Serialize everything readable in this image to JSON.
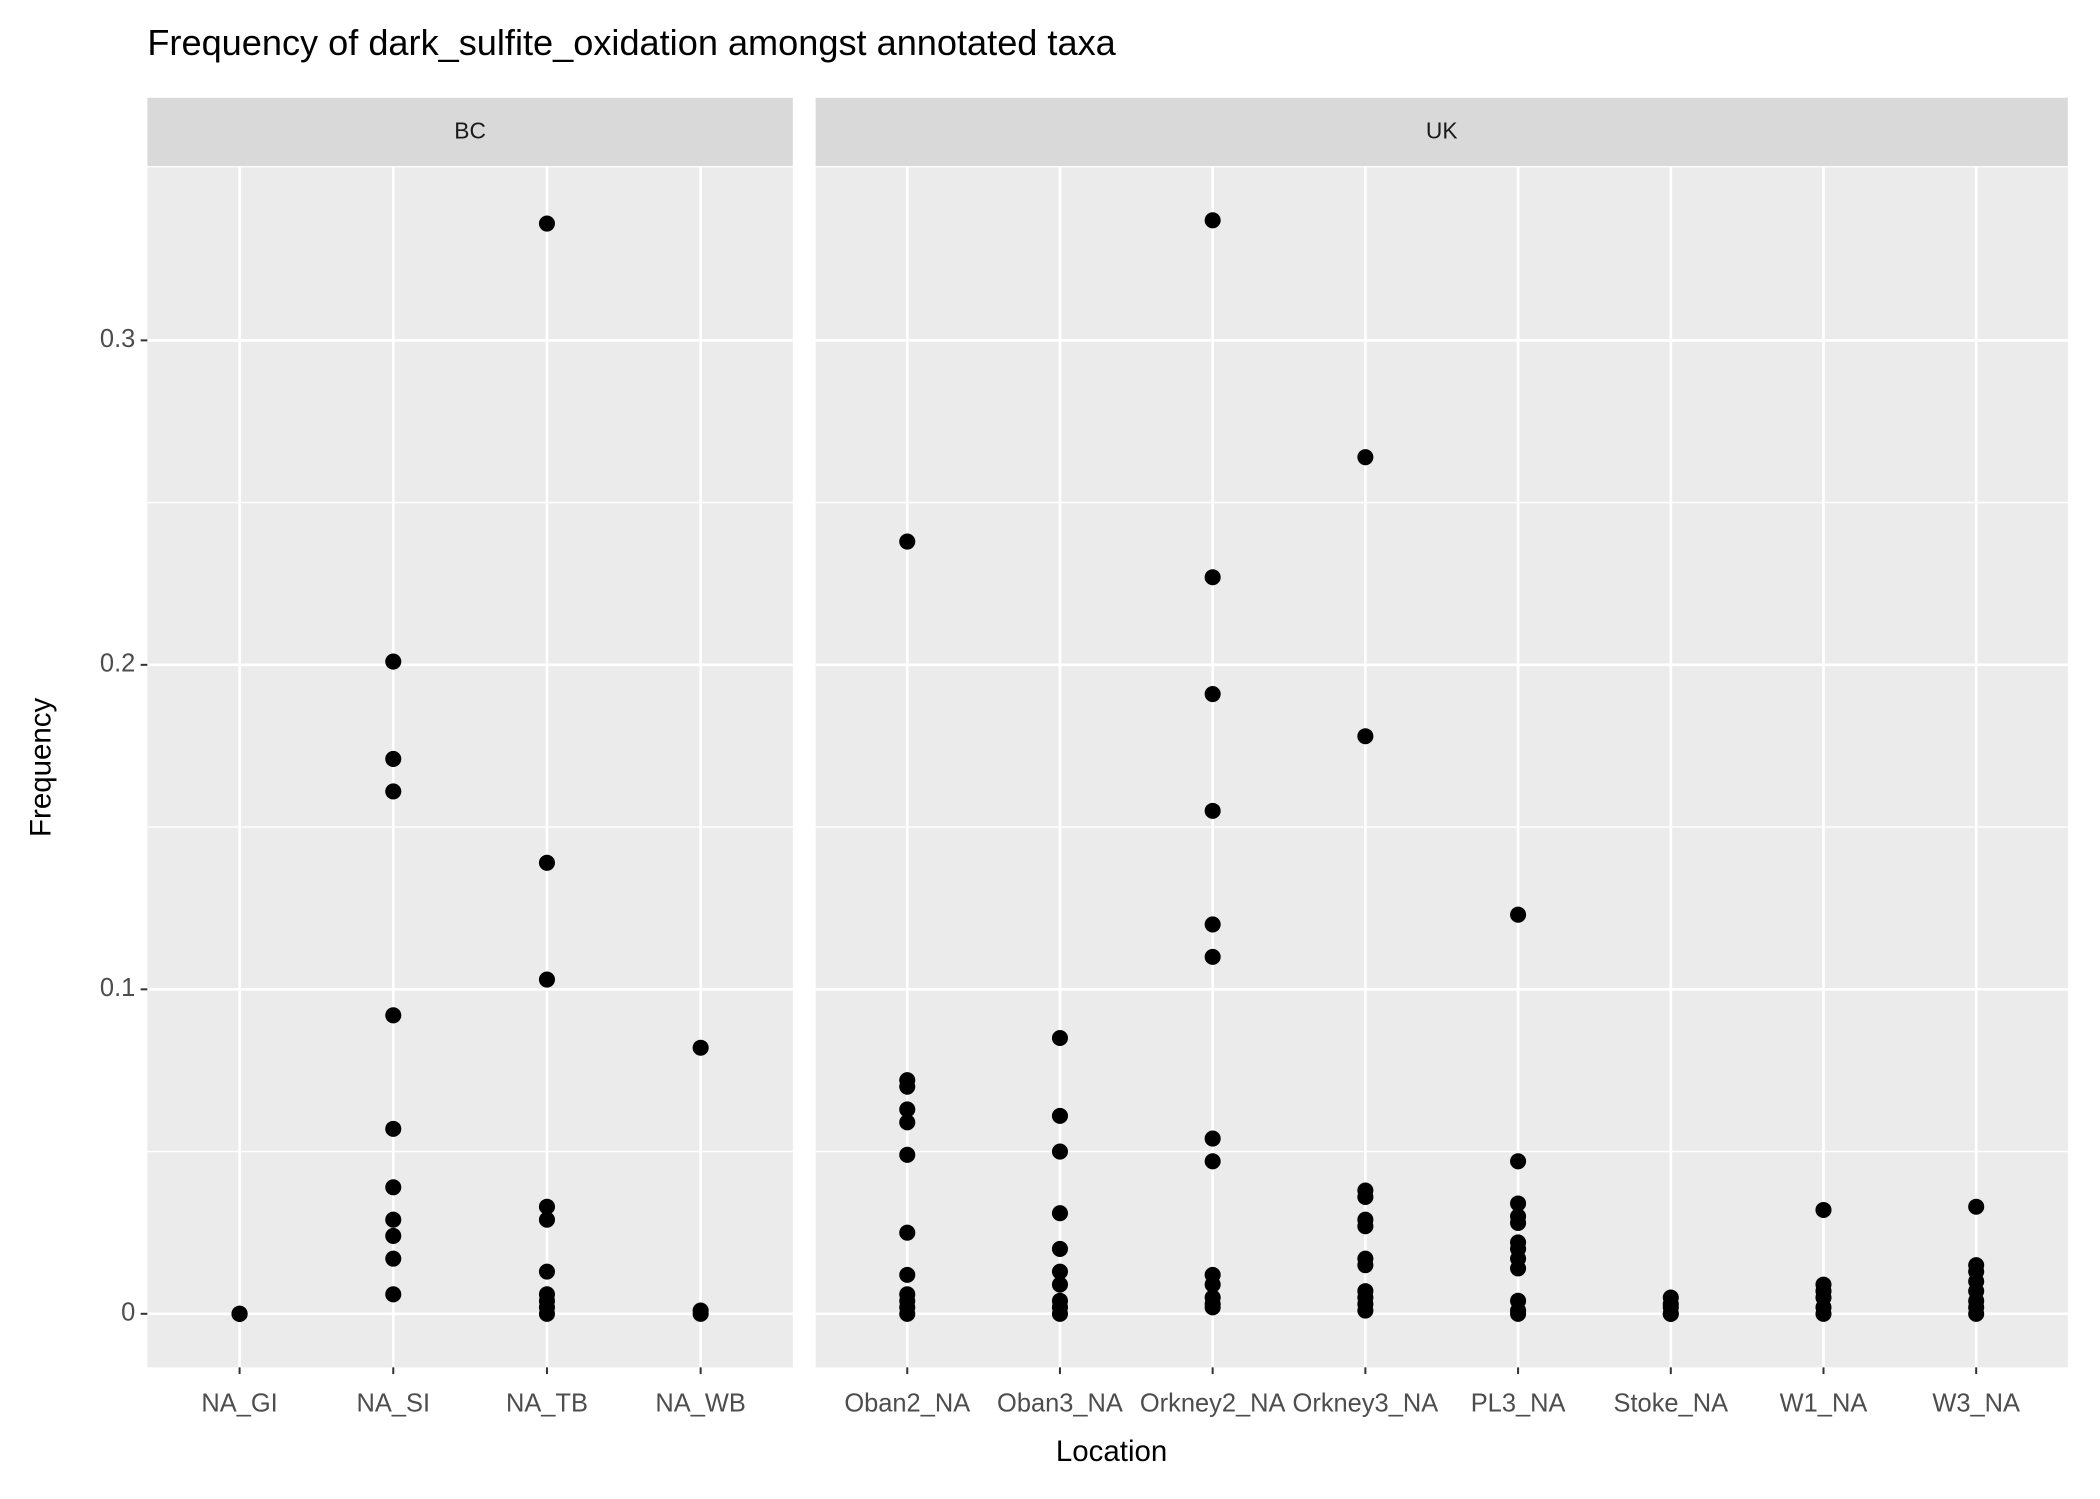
{
  "chart_data": {
    "type": "strip",
    "title": "Frequency of dark_sulfite_oxidation amongst annotated taxa",
    "x_label": "Location",
    "y_label": "Frequency",
    "ylim": [
      -0.0165,
      0.3533
    ],
    "yticks": [
      0.0,
      0.1,
      0.2,
      0.3
    ],
    "grid": true,
    "color": "#000000",
    "facets": [
      {
        "name": "BC",
        "categories": [
          "NA_GI",
          "NA_SI",
          "NA_TB",
          "NA_WB"
        ],
        "values": [
          [
            0,
            0,
            0
          ],
          [
            0.201,
            0.171,
            0.161,
            0.092,
            0.057,
            0.039,
            0.029,
            0.024,
            0.017,
            0.006
          ],
          [
            0.336,
            0.139,
            0.103,
            0.033,
            0.029,
            0.013,
            0.006,
            0.004,
            0.002,
            0
          ],
          [
            0.082,
            0.001,
            0
          ]
        ]
      },
      {
        "name": "UK",
        "categories": [
          "Oban2_NA",
          "Oban3_NA",
          "Orkney2_NA",
          "Orkney3_NA",
          "PL3_NA",
          "Stoke_NA",
          "W1_NA",
          "W3_NA"
        ],
        "values": [
          [
            0.238,
            0.072,
            0.07,
            0.063,
            0.059,
            0.049,
            0.025,
            0.012,
            0.006,
            0.004,
            0.002,
            0
          ],
          [
            0.085,
            0.061,
            0.05,
            0.031,
            0.02,
            0.013,
            0.009,
            0.004,
            0.002,
            0
          ],
          [
            0.337,
            0.227,
            0.191,
            0.155,
            0.12,
            0.11,
            0.054,
            0.047,
            0.012,
            0.009,
            0.005,
            0.003,
            0.002
          ],
          [
            0.264,
            0.178,
            0.038,
            0.036,
            0.029,
            0.027,
            0.017,
            0.015,
            0.007,
            0.005,
            0.003,
            0.001
          ],
          [
            0.123,
            0.047,
            0.034,
            0.03,
            0.028,
            0.022,
            0.02,
            0.017,
            0.014,
            0.004,
            0.001,
            0
          ],
          [
            0.005,
            0.003,
            0.002,
            0,
            0
          ],
          [
            0.032,
            0.009,
            0.007,
            0.005,
            0.002,
            0
          ],
          [
            0.033,
            0.015,
            0.013,
            0.01,
            0.007,
            0.004,
            0.002,
            0
          ]
        ]
      }
    ]
  }
}
